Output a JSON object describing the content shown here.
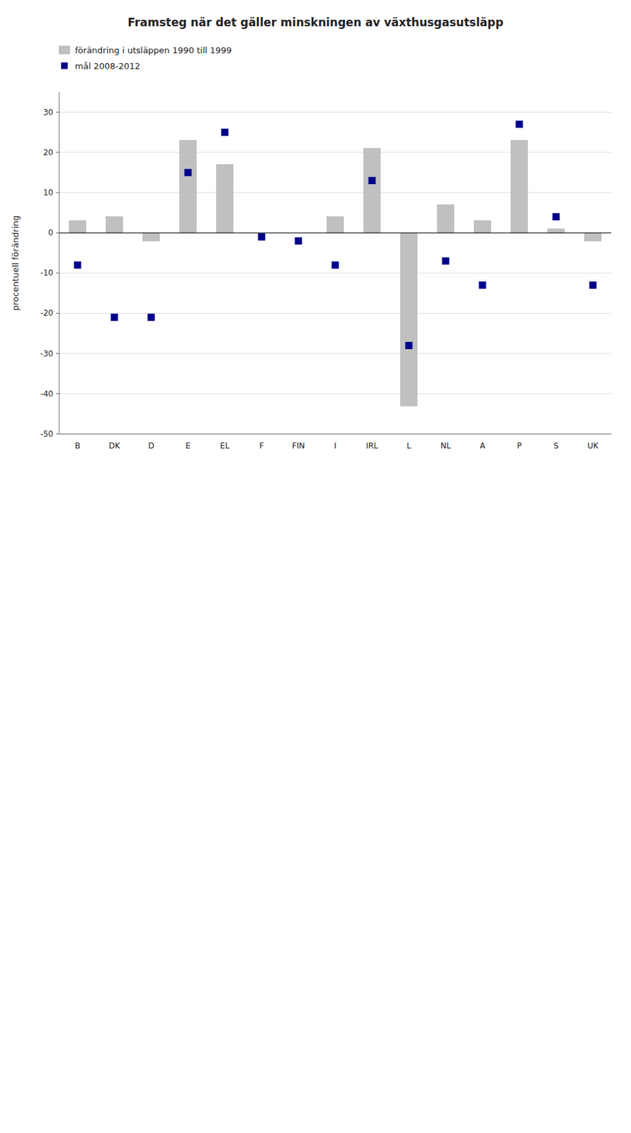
{
  "chart_data": {
    "type": "bar",
    "title": "Framsteg när det gäller minskningen av växthusgasutsläpp",
    "ylabel": "procentuell förändring",
    "categories": [
      "B",
      "DK",
      "D",
      "E",
      "EL",
      "F",
      "FIN",
      "I",
      "IRL",
      "L",
      "NL",
      "A",
      "P",
      "S",
      "UK"
    ],
    "series": [
      {
        "name": "förändring i utsläppen 1990 till 1999",
        "type": "bar",
        "color": "#c0c0c0",
        "values": [
          3,
          4,
          -2,
          23,
          17,
          0,
          0,
          4,
          21,
          -43,
          7,
          3,
          23,
          1,
          -2
        ]
      },
      {
        "name": "mål 2008-2012",
        "type": "scatter",
        "marker": "square",
        "color": "#00008B",
        "values": [
          -8,
          -21,
          -21,
          15,
          25,
          -1,
          -2,
          -8,
          13,
          -28,
          -7,
          -13,
          27,
          4,
          -13
        ]
      }
    ],
    "ylim": [
      -50,
      35
    ],
    "yticks": [
      30,
      20,
      10,
      0,
      -10,
      -20,
      -30,
      -40,
      -50
    ],
    "grid": true,
    "legend": "upper left"
  }
}
